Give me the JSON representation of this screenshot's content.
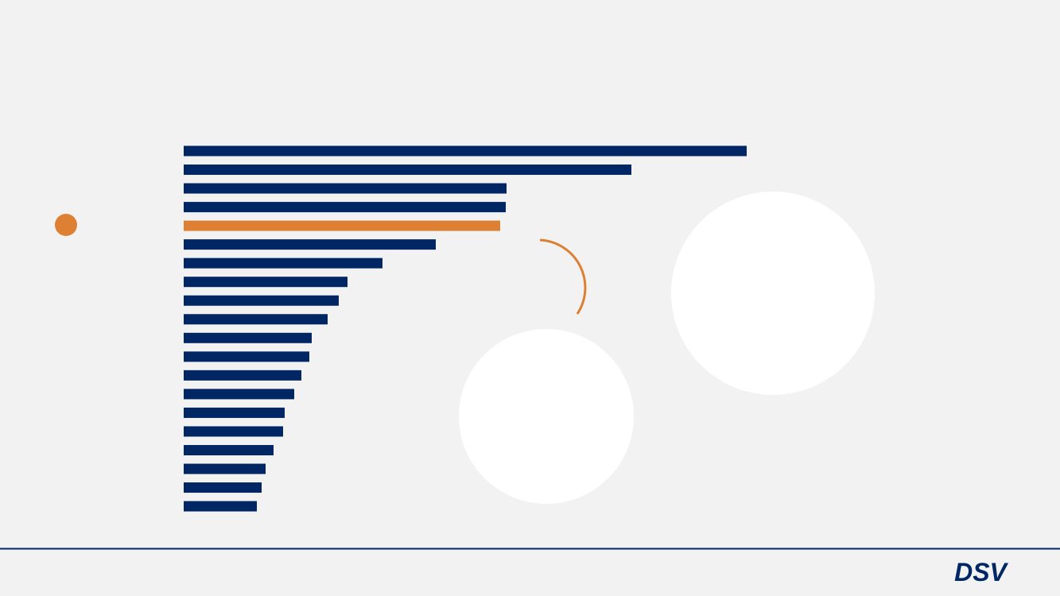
{
  "chart_data": {
    "type": "bar",
    "orientation": "horizontal",
    "values": [
      708,
      563,
      406,
      405,
      398,
      317,
      250,
      206,
      195,
      181,
      161,
      158,
      148,
      139,
      127,
      125,
      113,
      103,
      98,
      92
    ],
    "colors": [
      "#002664",
      "#002664",
      "#002664",
      "#002664",
      "#dd8033",
      "#002664",
      "#002664",
      "#002664",
      "#002664",
      "#002664",
      "#002664",
      "#002664",
      "#002664",
      "#002664",
      "#002664",
      "#002664",
      "#002664",
      "#002664",
      "#002664",
      "#002664"
    ]
  },
  "logo": "DSV"
}
